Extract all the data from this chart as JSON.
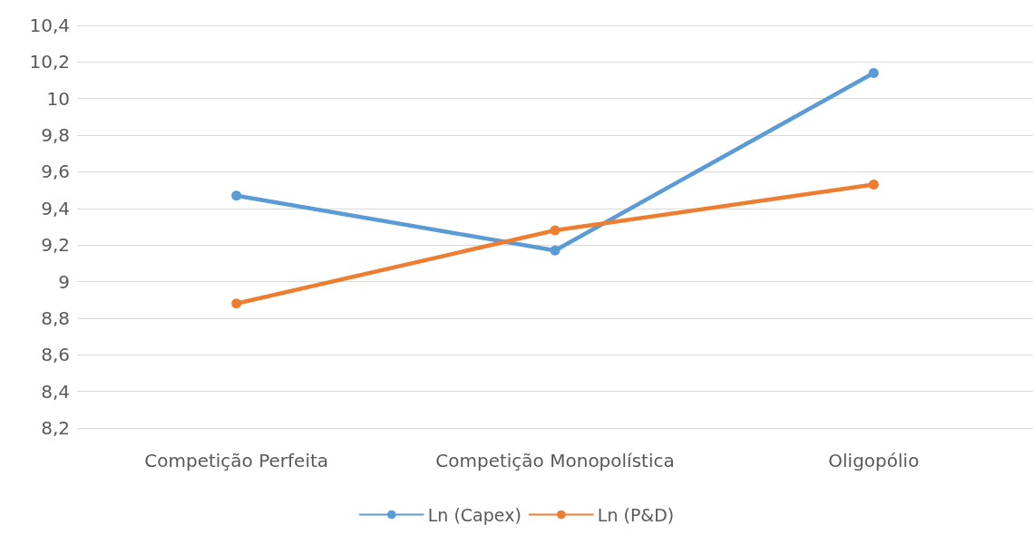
{
  "chart_data": {
    "type": "line",
    "categories": [
      "Competição Perfeita",
      "Competição Monopolística",
      "Oligopólio"
    ],
    "series": [
      {
        "name": "Ln (Capex)",
        "color": "#5b9bd5",
        "values": [
          9.47,
          9.17,
          10.14
        ]
      },
      {
        "name": "Ln (P&D)",
        "color": "#ed7d31",
        "values": [
          8.88,
          9.28,
          9.53
        ]
      }
    ],
    "ylim": [
      8.2,
      10.4
    ],
    "yticks": [
      {
        "value": 8.2,
        "label": "8,2"
      },
      {
        "value": 8.4,
        "label": "8,4"
      },
      {
        "value": 8.6,
        "label": "8,6"
      },
      {
        "value": 8.8,
        "label": "8,8"
      },
      9,
      {
        "value": 9.2,
        "label": "9,2"
      },
      {
        "value": 9.4,
        "label": "9,4"
      },
      {
        "value": 9.6,
        "label": "9,6"
      },
      {
        "value": 9.8,
        "label": "9,8"
      },
      10,
      {
        "value": 10.2,
        "label": "10,2"
      },
      {
        "value": 10.4,
        "label": "10,4"
      }
    ],
    "grid": "y",
    "legend": "bottom",
    "marker": "circle",
    "line_style": "solid"
  }
}
